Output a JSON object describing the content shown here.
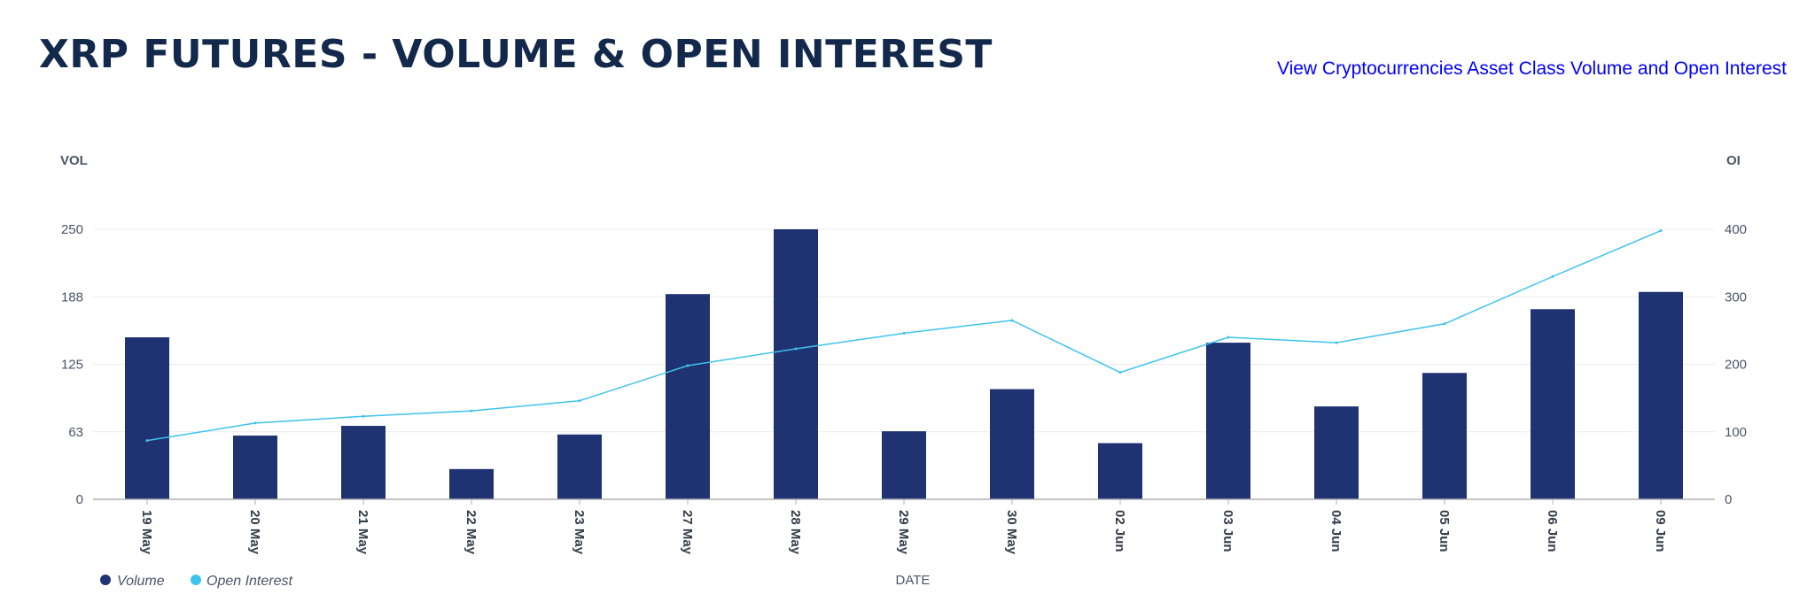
{
  "header": {
    "title": "XRP FUTURES - VOLUME & OPEN INTEREST",
    "link_label": "View Cryptocurrencies Asset Class Volume and Open Interest"
  },
  "colors": {
    "volume": "#1f3272",
    "open_interest": "#3ec3ec",
    "title": "#13294b",
    "link": "#0000ff",
    "grid": "#ececec",
    "axis": "#b0b0b0"
  },
  "chart_data": {
    "type": "bar",
    "categories": [
      "19 May",
      "20 May",
      "21 May",
      "22 May",
      "23 May",
      "27 May",
      "28 May",
      "29 May",
      "30 May",
      "02 Jun",
      "03 Jun",
      "04 Jun",
      "05 Jun",
      "06 Jun",
      "09 Jun"
    ],
    "series": [
      {
        "name": "Volume",
        "type": "bar",
        "axis": "left",
        "values": [
          150,
          59,
          68,
          28,
          60,
          190,
          250,
          63,
          102,
          52,
          145,
          86,
          117,
          176,
          192
        ]
      },
      {
        "name": "Open Interest",
        "type": "line",
        "axis": "right",
        "values": [
          87,
          113,
          123,
          131,
          146,
          198,
          223,
          246,
          265,
          188,
          240,
          232,
          260,
          330,
          398
        ]
      }
    ],
    "xlabel": "DATE",
    "ylabel_left": "VOL",
    "ylabel_right": "OI",
    "ylim_left": [
      0,
      250
    ],
    "yticks_left": [
      "0",
      "63",
      "125",
      "188",
      "250"
    ],
    "ylim_right": [
      0,
      400
    ],
    "yticks_right": [
      "0",
      "100",
      "200",
      "300",
      "400"
    ],
    "grid": true,
    "legend": "bottom-left"
  }
}
